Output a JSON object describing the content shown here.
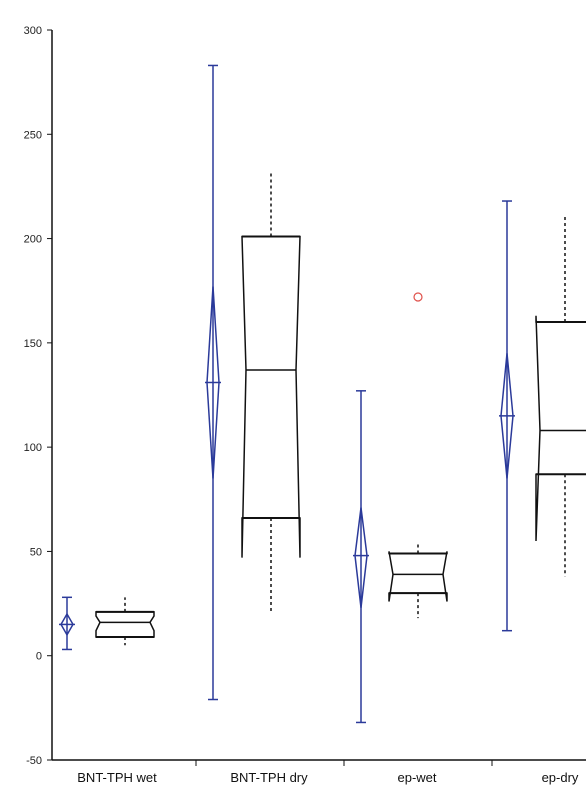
{
  "chart_data": {
    "type": "box",
    "title": "",
    "xlabel": "",
    "ylabel": "",
    "ylim": [
      -50,
      300
    ],
    "yticks": [
      -50,
      0,
      50,
      100,
      150,
      200,
      250,
      300
    ],
    "ytick_labels": [
      "-50",
      "0",
      "50",
      "100",
      "150",
      "200",
      "250",
      "300"
    ],
    "categories": [
      "BNT-TPH wet",
      "BNT-TPH dry",
      "ep-wet",
      "ep-dry"
    ],
    "grid": false,
    "colors": {
      "diamond": "#2b3a9a",
      "box": "#111111",
      "outlier": "#e0504a",
      "axis": "#111111"
    },
    "groups": [
      {
        "category": "BNT-TPH wet",
        "mean_diamond": {
          "whisker_low": 3,
          "whisker_high": 28,
          "ci_low": 10,
          "mean": 15,
          "ci_high": 20
        },
        "box": {
          "whisker_low": 5,
          "q1": 9,
          "median": 16,
          "q3": 21,
          "whisker_high": 28,
          "notch_low": 12,
          "notch_high": 19
        },
        "outliers": []
      },
      {
        "category": "BNT-TPH dry",
        "mean_diamond": {
          "whisker_low": -21,
          "whisker_high": 283,
          "ci_low": 85,
          "mean": 131,
          "ci_high": 177
        },
        "box": {
          "whisker_low": 20,
          "q1": 66,
          "median": 137,
          "q3": 201,
          "whisker_high": 232,
          "notch_low": 47,
          "notch_high": 201
        },
        "outliers": []
      },
      {
        "category": "ep-wet",
        "mean_diamond": {
          "whisker_low": -32,
          "whisker_high": 127,
          "ci_low": 23,
          "mean": 48,
          "ci_high": 71
        },
        "box": {
          "whisker_low": 18,
          "q1": 30,
          "median": 39,
          "q3": 49,
          "whisker_high": 54,
          "notch_low": 26,
          "notch_high": 50
        },
        "outliers": [
          172
        ]
      },
      {
        "category": "ep-dry",
        "mean_diamond": {
          "whisker_low": 12,
          "whisker_high": 218,
          "ci_low": 85,
          "mean": 115,
          "ci_high": 145
        },
        "box": {
          "whisker_low": 38,
          "q1": 87,
          "median": 108,
          "q3": 160,
          "whisker_high": 211,
          "notch_low": 55,
          "notch_high": 163
        },
        "outliers": []
      }
    ]
  }
}
